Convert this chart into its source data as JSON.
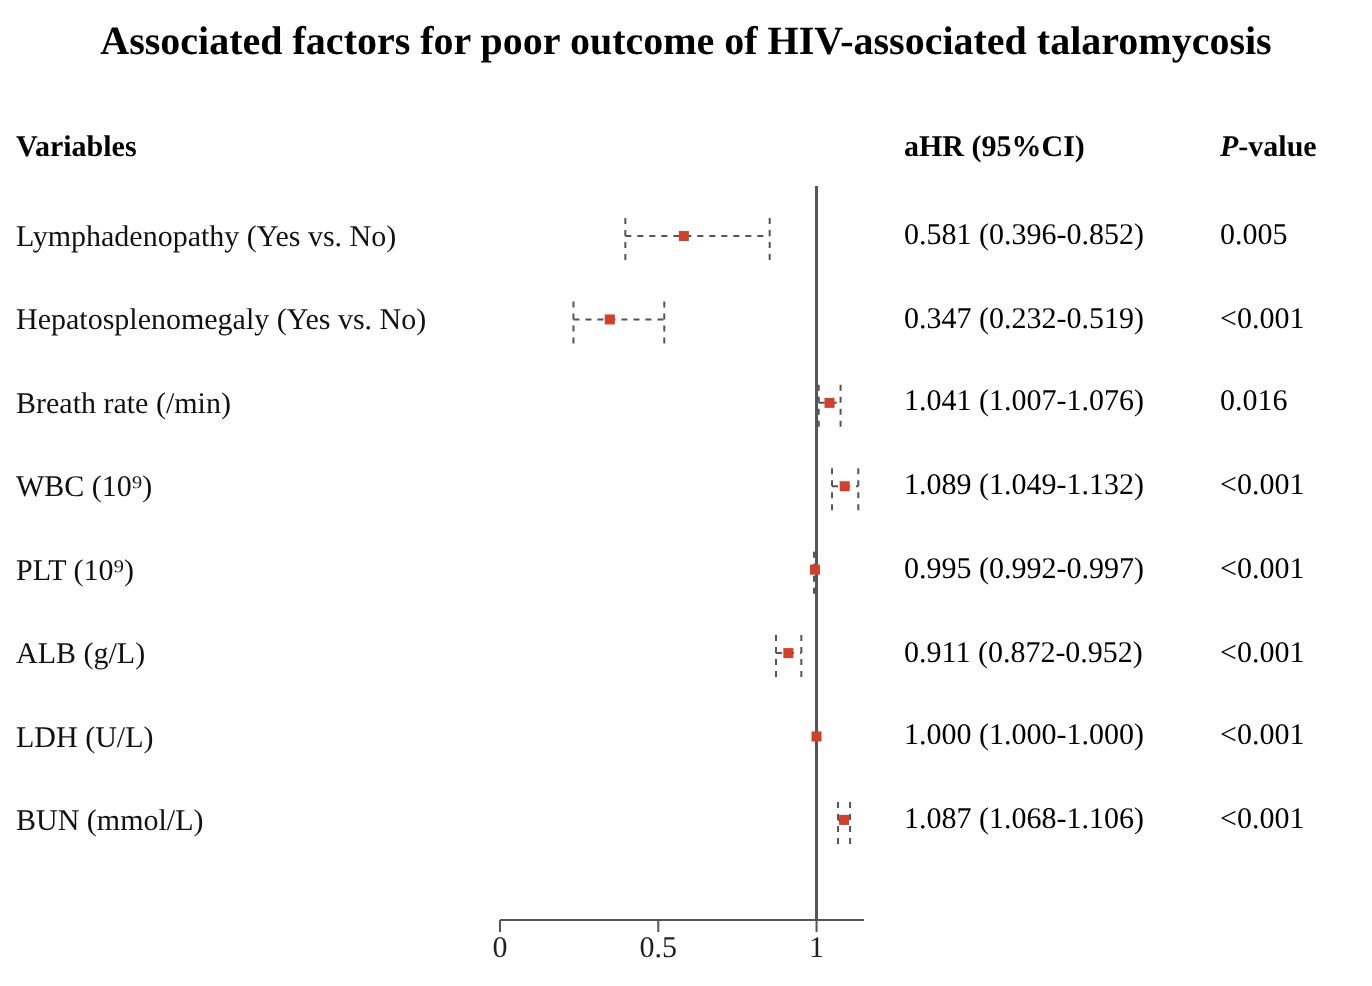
{
  "chart_data": {
    "type": "scatter",
    "orientation": "horizontal",
    "title": "Associated factors for poor outcome of HIV-associated talaromycosis",
    "categories": [
      "Lymphadenopathy (Yes vs. No)",
      "Hepatosplenomegaly (Yes vs. No)",
      "Breath rate (/min)",
      "WBC (10⁹)",
      "PLT (10⁹)",
      "ALB (g/L)",
      "LDH (U/L)",
      "BUN (mmol/L)"
    ],
    "series": [
      {
        "color": "#d0402a",
        "values": [
          0.581,
          0.347,
          1.041,
          1.089,
          0.995,
          0.911,
          1.0,
          1.087
        ],
        "errors": [
          [
            0.396,
            0.852
          ],
          [
            0.232,
            0.519
          ],
          [
            1.007,
            1.076
          ],
          [
            1.049,
            1.132
          ],
          [
            0.992,
            0.997
          ],
          [
            0.872,
            0.952
          ],
          [
            1.0,
            1.0
          ],
          [
            1.068,
            1.106
          ]
        ],
        "value_labels": [
          "0.581 (0.396-0.852)",
          "0.347 (0.232-0.519)",
          "1.041 (1.007-1.076)",
          "1.089 (1.049-1.132)",
          "0.995 (0.992-0.997)",
          "0.911 (0.872-0.952)",
          "1.000 (1.000-1.000)",
          "1.087 (1.068-1.106)"
        ]
      }
    ],
    "annotations": [
      "Variables",
      "aHR (95%CI)",
      "P-value",
      "0.005",
      "<0.001",
      "0.016",
      "<0.001",
      "<0.001",
      "<0.001",
      "<0.001",
      "<0.001"
    ],
    "xlim": [
      0,
      1.15
    ],
    "xticks": [
      0,
      0.5,
      1
    ],
    "ref_lines": [
      {
        "axis": "x",
        "value": 1,
        "color": "#555555"
      }
    ],
    "marker": "square",
    "grid": false,
    "legend": false
  }
}
